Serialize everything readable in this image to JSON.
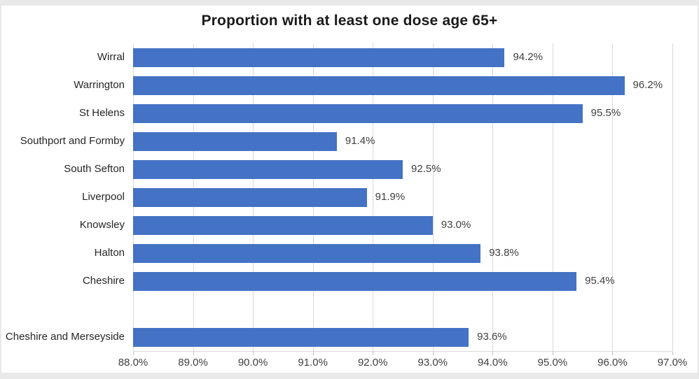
{
  "frame": {
    "background_color": "#e9e9e9",
    "chart_background_color": "#ffffff"
  },
  "chart_data": {
    "type": "bar",
    "orientation": "horizontal",
    "title": "Proportion with at least one dose age 65+",
    "categories": [
      "Wirral",
      "Warrington",
      "St Helens",
      "Southport and Formby",
      "South Sefton",
      "Liverpool",
      "Knowsley",
      "Halton",
      "Cheshire",
      "",
      "Cheshire and Merseyside"
    ],
    "values": [
      94.2,
      96.2,
      95.5,
      91.4,
      92.5,
      91.9,
      93.0,
      93.8,
      95.4,
      null,
      93.6
    ],
    "data_labels": [
      "94.2%",
      "96.2%",
      "95.5%",
      "91.4%",
      "92.5%",
      "91.9%",
      "93.0%",
      "93.8%",
      "95.4%",
      "",
      "93.6%"
    ],
    "xlabel": "",
    "ylabel": "",
    "xlim": [
      88,
      97
    ],
    "x_tick_values": [
      88,
      89,
      90,
      91,
      92,
      93,
      94,
      95,
      96,
      97
    ],
    "x_tick_labels": [
      "88.0%",
      "89.0%",
      "90.0%",
      "91.0%",
      "92.0%",
      "93.0%",
      "94.0%",
      "95.0%",
      "96.0%",
      "97.0%"
    ],
    "bar_color": "#4472C4",
    "gridline_color": "#d9d9d9",
    "grid": "vertical-major",
    "legend_position": "none"
  }
}
